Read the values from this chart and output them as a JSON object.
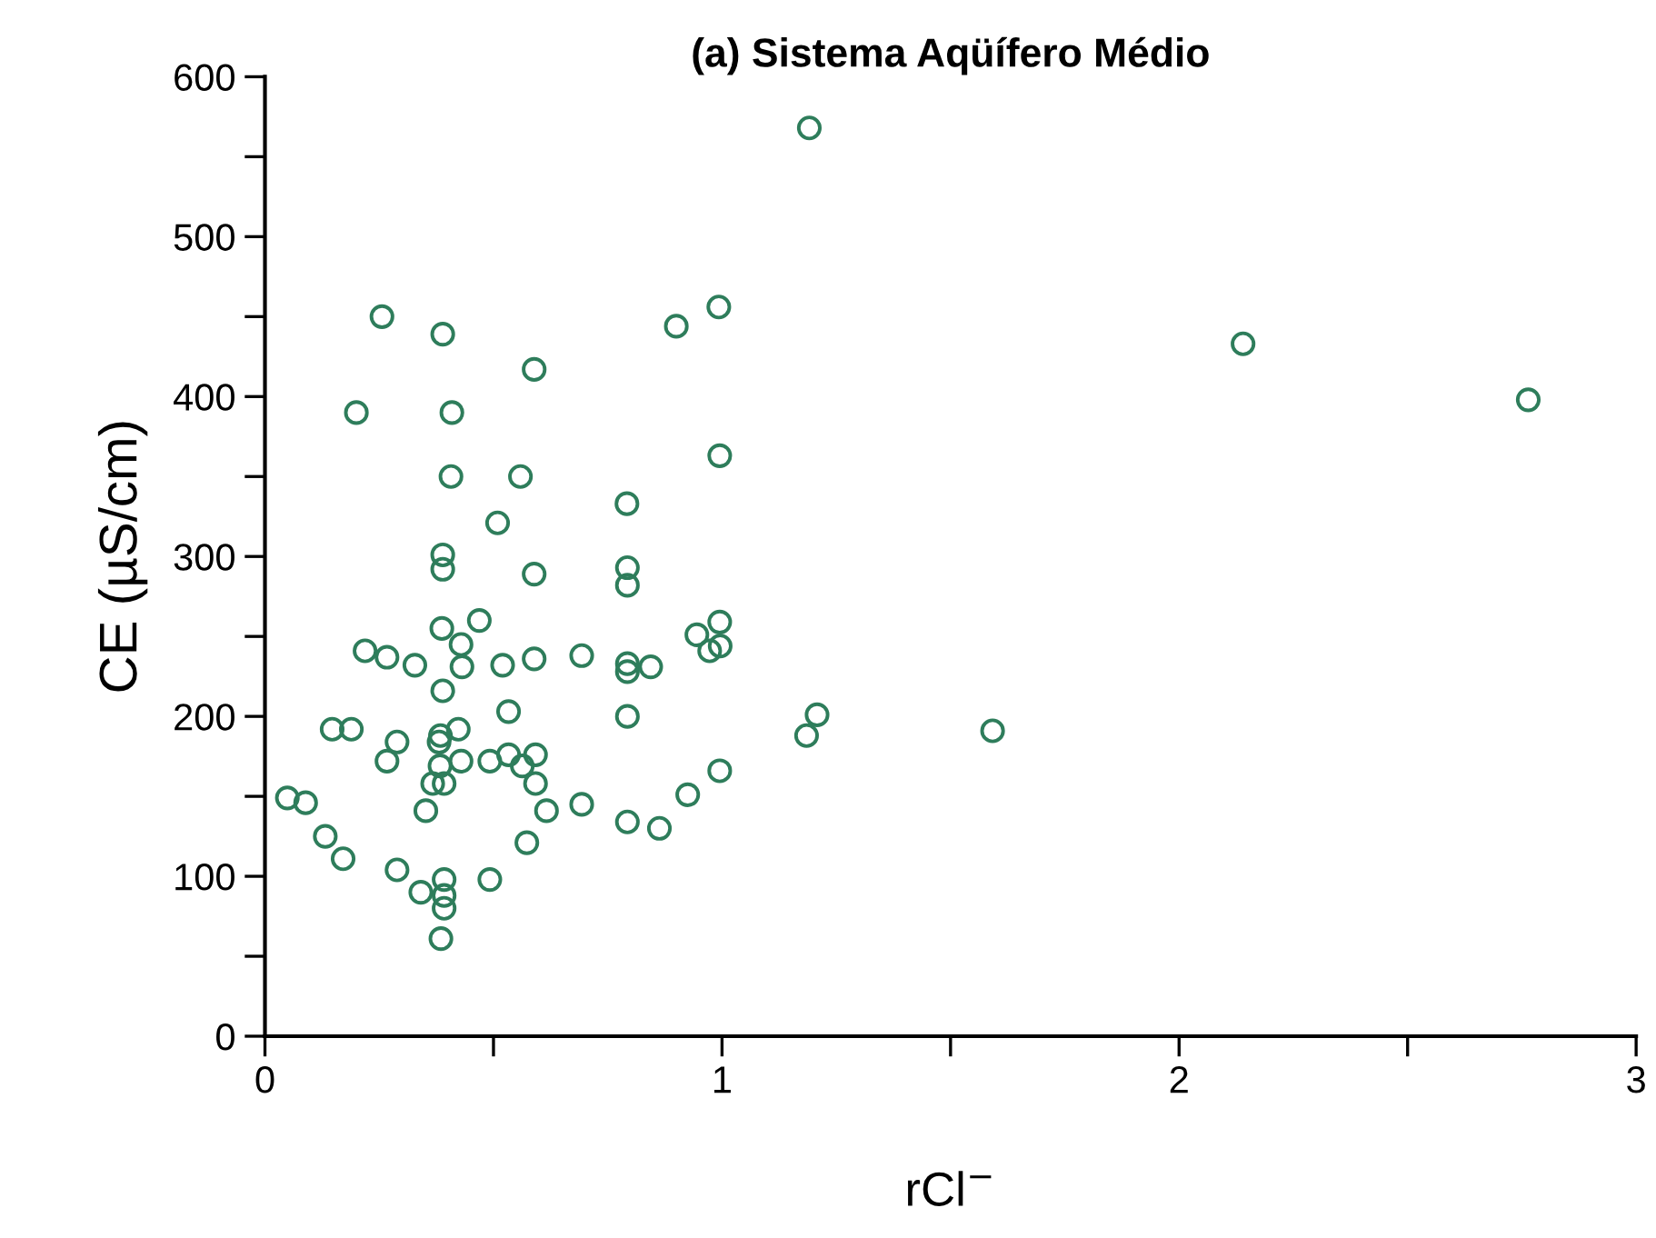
{
  "chart_data": {
    "type": "scatter",
    "title": "(a) Sistema Aqüífero Médio",
    "xlabel": "rCl$^{−}$",
    "ylabel": "CE (µS/cm)",
    "x": [
      0.256,
      0.389,
      0.9,
      0.993,
      0.589,
      0.2,
      0.409,
      0.995,
      0.407,
      0.559,
      0.792,
      0.509,
      0.389,
      0.389,
      0.589,
      0.793,
      0.793,
      0.469,
      0.995,
      0.387,
      0.945,
      0.429,
      0.996,
      0.973,
      0.219,
      0.267,
      0.328,
      0.431,
      0.52,
      0.589,
      0.693,
      0.793,
      0.793,
      0.844,
      0.389,
      0.533,
      0.793,
      1.208,
      1.185,
      0.147,
      0.189,
      0.289,
      0.267,
      0.384,
      0.381,
      0.423,
      0.383,
      0.367,
      0.392,
      0.429,
      0.492,
      0.533,
      0.563,
      0.592,
      0.592,
      0.616,
      0.693,
      0.925,
      0.995,
      0.049,
      0.089,
      0.352,
      0.793,
      0.863,
      0.132,
      0.171,
      0.573,
      0.289,
      0.392,
      0.492,
      0.341,
      0.392,
      0.392,
      0.385,
      1.191,
      2.14,
      2.764,
      1.592
    ],
    "values": [
      450,
      439,
      444,
      456,
      417,
      390,
      390,
      363,
      350,
      350,
      333,
      321,
      301,
      292,
      289,
      293,
      282,
      260,
      259,
      255,
      251,
      245,
      244,
      241,
      241,
      237,
      232,
      231,
      232,
      236,
      238,
      233,
      228,
      231,
      216,
      203,
      200,
      201,
      188,
      192,
      192,
      184,
      172,
      188,
      184,
      192,
      169,
      158,
      158,
      172,
      172,
      176,
      169,
      176,
      158,
      141,
      145,
      151,
      166,
      149,
      146,
      141,
      134,
      130,
      125,
      111,
      121,
      104,
      98,
      98,
      90,
      88,
      80,
      61,
      568,
      433,
      398,
      191
    ],
    "color": "#2e7d5b",
    "marker": "circle",
    "xlim": [
      0,
      3
    ],
    "ylim": [
      0,
      600
    ],
    "xticks": [
      0,
      {
        "value": 0.5,
        "label": null
      },
      1,
      {
        "value": 1.5,
        "label": null
      },
      2,
      {
        "value": 2.5,
        "label": null
      },
      3
    ],
    "yticks": [
      0,
      {
        "value": 50,
        "label": null
      },
      100,
      {
        "value": 150,
        "label": null
      },
      200,
      {
        "value": 250,
        "label": null
      },
      300,
      {
        "value": 350,
        "label": null
      },
      400,
      {
        "value": 450,
        "label": null
      },
      500,
      {
        "value": 550,
        "label": null
      },
      600
    ],
    "grid": false,
    "legend": false
  }
}
